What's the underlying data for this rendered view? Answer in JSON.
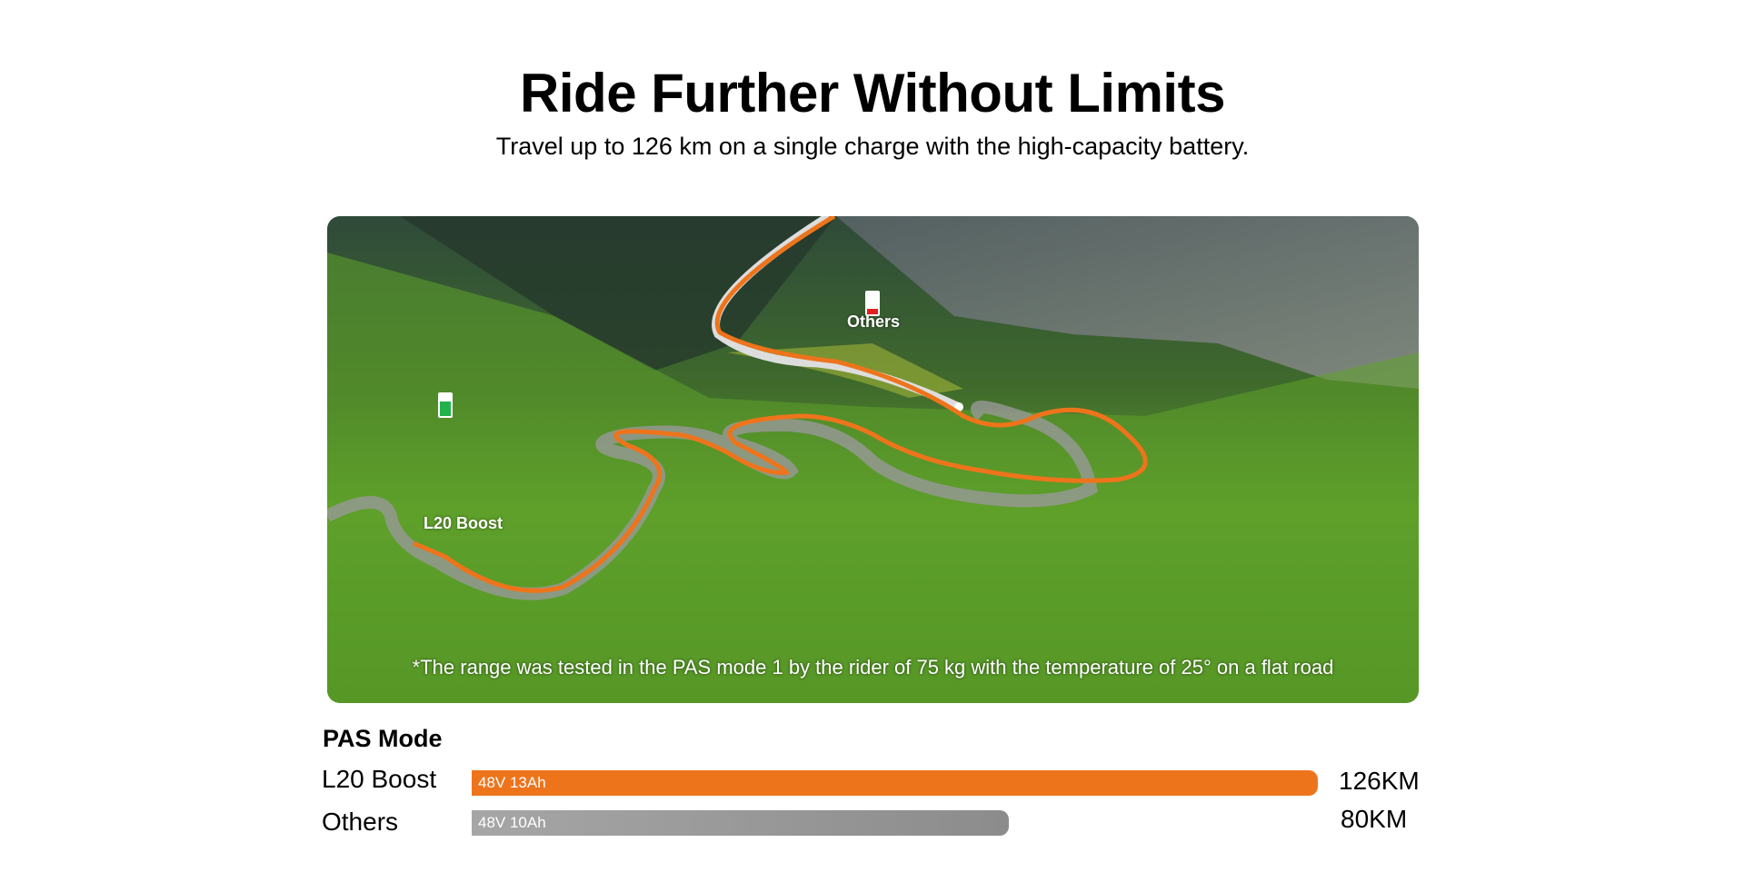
{
  "header": {
    "title": "Ride Further Without Limits",
    "subtitle": "Travel up to 126 km on a single charge with the high-capacity battery."
  },
  "photo": {
    "labels": {
      "boost": "L20 Boost",
      "others": "Others"
    },
    "battery_icons": {
      "boost": "battery-full-icon",
      "others": "battery-low-icon"
    },
    "note": "*The range was tested in the PAS mode 1 by the rider of 75 kg with the temperature of 25° on a flat road"
  },
  "comparison": {
    "heading": "PAS Mode",
    "max_km": 126,
    "rows": [
      {
        "name": "L20 Boost",
        "battery": "48V 13Ah",
        "range": "126KM",
        "km": 126,
        "color": "#ee741c"
      },
      {
        "name": "Others",
        "battery": "48V 10Ah",
        "range": "80KM",
        "km": 80,
        "color": "#8c8c8c"
      }
    ]
  }
}
